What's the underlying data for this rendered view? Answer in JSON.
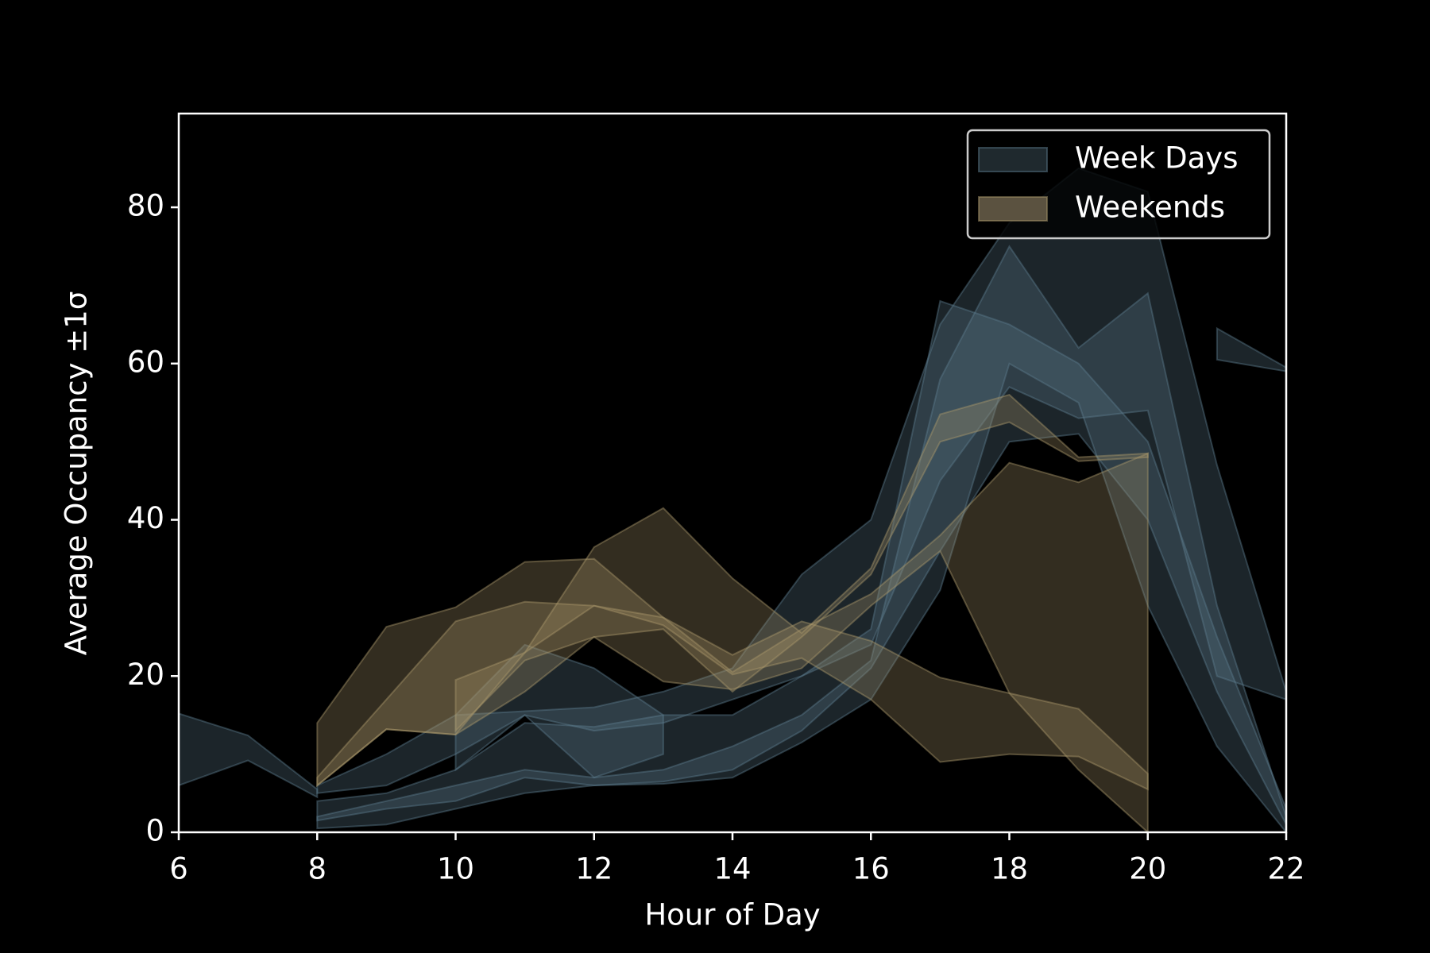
{
  "chart_data": {
    "type": "band",
    "x_label": "Hour of Day",
    "y_label": "Average Occupancy ±1σ",
    "xlim": [
      6,
      22
    ],
    "xticks": [
      6,
      8,
      10,
      12,
      14,
      16,
      18,
      20,
      22
    ],
    "ylim": [
      0,
      92
    ],
    "yticks": [
      0,
      20,
      40,
      60,
      80
    ],
    "grid": false,
    "legend": "upper right",
    "series": [
      {
        "name": "Week Days",
        "color": "#5c7a8c",
        "legend_color": "#1f292e",
        "bands": [
          {
            "x": [
              6,
              7,
              8
            ],
            "lower": [
              6,
              9.2,
              4.5
            ],
            "upper": [
              15.2,
              12.4,
              5.5
            ]
          },
          {
            "x": [
              8,
              9,
              10,
              11,
              12,
              13,
              14,
              15,
              16,
              17,
              18,
              19,
              20,
              21,
              22
            ],
            "lower": [
              5,
              6,
              10,
              15,
              13,
              14,
              17,
              20,
              24,
              45,
              57,
              53,
              54,
              20,
              17
            ],
            "upper": [
              6,
              10,
              15,
              15.5,
              16,
              18,
              21,
              33,
              40,
              65,
              78,
              85,
              82,
              47,
              18
            ]
          },
          {
            "x": [
              8,
              9,
              10,
              11,
              12,
              13,
              14,
              15,
              16,
              17,
              18,
              19,
              20,
              21,
              22
            ],
            "lower": [
              0.5,
              1,
              3,
              5,
              6,
              6.2,
              7,
              11.5,
              17,
              31,
              60,
              55,
              29,
              11,
              0
            ],
            "upper": [
              2,
              4,
              6,
              8,
              7,
              8,
              11,
              15,
              22,
              58,
              75,
              62,
              69,
              29,
              2
            ]
          },
          {
            "x": [
              8,
              9,
              10,
              11,
              12,
              13,
              14,
              15,
              16,
              17,
              18,
              19,
              20,
              21,
              22
            ],
            "lower": [
              1.5,
              3,
              4,
              7,
              6,
              6.5,
              8,
              13,
              21,
              36,
              50,
              51,
              40,
              18,
              1
            ],
            "upper": [
              4,
              5,
              8,
              14,
              13.5,
              15,
              15,
              20,
              26,
              68,
              65,
              60,
              50,
              25,
              3
            ]
          },
          {
            "x": [
              10,
              11,
              12,
              13
            ],
            "lower": [
              8,
              15,
              7,
              10
            ],
            "upper": [
              15,
              24,
              21,
              15
            ]
          },
          {
            "x": [
              21,
              22
            ],
            "lower": [
              60.5,
              59
            ],
            "upper": [
              64.5,
              59.5
            ]
          }
        ]
      },
      {
        "name": "Weekends",
        "color": "#a8966a",
        "legend_color": "#5b5240",
        "bands": [
          {
            "x": [
              8,
              9,
              10,
              11,
              12,
              13,
              14,
              15,
              16,
              17,
              18,
              19,
              20
            ],
            "lower": [
              6,
              13.2,
              12.5,
              23,
              29,
              26.5,
              20.2,
              22.3,
              17,
              9,
              10,
              9.7,
              5.5
            ],
            "upper": [
              14,
              26.3,
              28.8,
              34.6,
              35,
              27.5,
              22.7,
              27,
              24.5,
              19.8,
              17.8,
              15.8,
              7.5
            ]
          },
          {
            "x": [
              8,
              9,
              10,
              11,
              12,
              13,
              14,
              15,
              16,
              17,
              18,
              19,
              20
            ],
            "lower": [
              6,
              13.2,
              12.5,
              18,
              25,
              19.3,
              18.3,
              21,
              29,
              36,
              17.8,
              8,
              0
            ],
            "upper": [
              7,
              17,
              27,
              29.5,
              29,
              27.5,
              20.5,
              26,
              30.5,
              38,
              47.3,
              44.8,
              48.5
            ]
          },
          {
            "x": [
              10,
              11,
              12,
              13,
              14,
              15,
              16,
              17,
              18,
              19,
              20
            ],
            "lower": [
              13,
              22,
              25,
              26,
              18,
              25,
              33,
              50,
              52.5,
              47.5,
              48
            ],
            "upper": [
              19.5,
              23,
              36.5,
              41.5,
              32.5,
              25.5,
              33.8,
              53.5,
              56,
              48,
              48.5
            ]
          }
        ]
      }
    ]
  }
}
